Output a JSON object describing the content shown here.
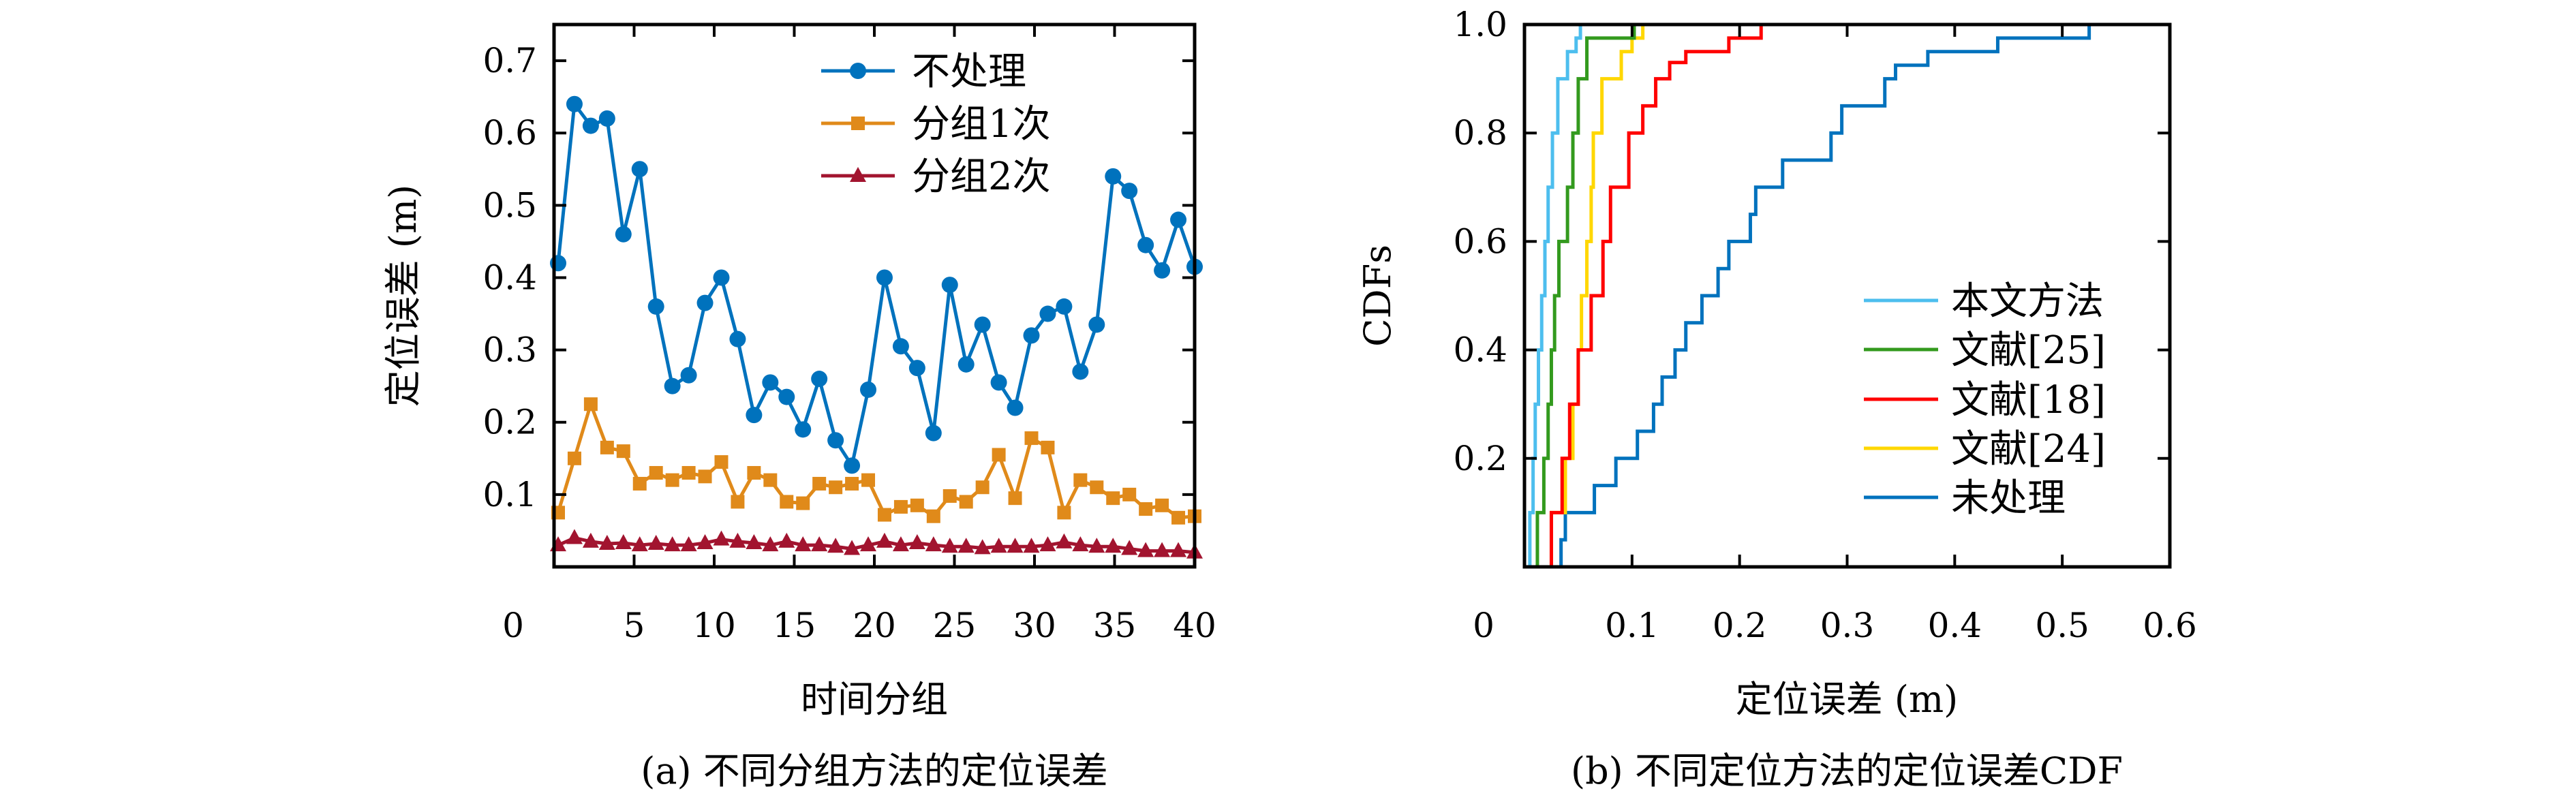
{
  "chart_data": [
    {
      "type": "line",
      "caption": "(a) 不同分组方法的定位误差",
      "xlabel": "时间分组",
      "ylabel": "定位误差 (m)",
      "xlim": [
        0,
        40
      ],
      "ylim": [
        0,
        0.75
      ],
      "xticks": [
        "0",
        "5",
        "10",
        "15",
        "20",
        "25",
        "30",
        "35",
        "40"
      ],
      "yticks": [
        "0.1",
        "0.2",
        "0.3",
        "0.4",
        "0.5",
        "0.6",
        "0.7"
      ],
      "grid": false,
      "legend_position": "top-right",
      "x": [
        1,
        2,
        3,
        4,
        5,
        6,
        7,
        8,
        9,
        10,
        11,
        12,
        13,
        14,
        15,
        16,
        17,
        18,
        19,
        20,
        21,
        22,
        23,
        24,
        25,
        26,
        27,
        28,
        29,
        30,
        31,
        32,
        33,
        34,
        35,
        36,
        37,
        38,
        39,
        40
      ],
      "series": [
        {
          "name": "不处理",
          "color": "#0072BD",
          "marker": "circle",
          "values": [
            0.42,
            0.64,
            0.61,
            0.62,
            0.46,
            0.55,
            0.36,
            0.25,
            0.265,
            0.365,
            0.4,
            0.315,
            0.21,
            0.255,
            0.235,
            0.19,
            0.26,
            0.175,
            0.14,
            0.245,
            0.4,
            0.305,
            0.275,
            0.185,
            0.39,
            0.28,
            0.335,
            0.255,
            0.22,
            0.32,
            0.35,
            0.36,
            0.27,
            0.335,
            0.54,
            0.52,
            0.445,
            0.41,
            0.48,
            0.415
          ]
        },
        {
          "name": "分组1次",
          "color": "#E08A1A",
          "marker": "square",
          "values": [
            0.075,
            0.15,
            0.225,
            0.165,
            0.16,
            0.115,
            0.13,
            0.12,
            0.13,
            0.125,
            0.145,
            0.09,
            0.13,
            0.12,
            0.09,
            0.088,
            0.115,
            0.11,
            0.115,
            0.12,
            0.072,
            0.083,
            0.085,
            0.07,
            0.098,
            0.09,
            0.11,
            0.155,
            0.095,
            0.178,
            0.165,
            0.075,
            0.12,
            0.11,
            0.095,
            0.1,
            0.08,
            0.085,
            0.068,
            0.07
          ]
        },
        {
          "name": "分组2次",
          "color": "#A2142F",
          "marker": "triangle",
          "values": [
            0.03,
            0.04,
            0.035,
            0.032,
            0.033,
            0.03,
            0.032,
            0.03,
            0.03,
            0.033,
            0.038,
            0.035,
            0.033,
            0.03,
            0.035,
            0.03,
            0.03,
            0.028,
            0.025,
            0.03,
            0.035,
            0.03,
            0.033,
            0.03,
            0.028,
            0.028,
            0.026,
            0.028,
            0.028,
            0.028,
            0.03,
            0.034,
            0.03,
            0.028,
            0.028,
            0.025,
            0.022,
            0.022,
            0.022,
            0.02
          ]
        }
      ]
    },
    {
      "type": "line",
      "caption": "(b) 不同定位方法的定位误差CDF",
      "xlabel": "定位误差 (m)",
      "ylabel": "CDFs",
      "xlim": [
        0,
        0.6
      ],
      "ylim": [
        0,
        1.0
      ],
      "xticks": [
        "0",
        "0.1",
        "0.2",
        "0.3",
        "0.4",
        "0.5",
        "0.6"
      ],
      "yticks": [
        "0.2",
        "0.4",
        "0.6",
        "0.8",
        "1.0"
      ],
      "grid": false,
      "legend_position": "bottom-right",
      "series": [
        {
          "name": "本文方法",
          "color": "#4DBEEE",
          "points": [
            [
              0.003,
              0.0
            ],
            [
              0.005,
              0.1
            ],
            [
              0.008,
              0.2
            ],
            [
              0.01,
              0.3
            ],
            [
              0.013,
              0.4
            ],
            [
              0.016,
              0.5
            ],
            [
              0.019,
              0.6
            ],
            [
              0.022,
              0.7
            ],
            [
              0.026,
              0.8
            ],
            [
              0.031,
              0.9
            ],
            [
              0.04,
              0.95
            ],
            [
              0.048,
              0.975
            ],
            [
              0.052,
              1.0
            ]
          ]
        },
        {
          "name": "文献[25]",
          "color": "#339A1E",
          "points": [
            [
              0.008,
              0.0
            ],
            [
              0.012,
              0.1
            ],
            [
              0.018,
              0.2
            ],
            [
              0.022,
              0.3
            ],
            [
              0.025,
              0.4
            ],
            [
              0.028,
              0.5
            ],
            [
              0.032,
              0.6
            ],
            [
              0.04,
              0.7
            ],
            [
              0.045,
              0.8
            ],
            [
              0.05,
              0.9
            ],
            [
              0.058,
              0.975
            ],
            [
              0.102,
              1.0
            ]
          ]
        },
        {
          "name": "文献[18]",
          "color": "#FF0000",
          "points": [
            [
              0.017,
              0.0
            ],
            [
              0.025,
              0.1
            ],
            [
              0.035,
              0.2
            ],
            [
              0.042,
              0.3
            ],
            [
              0.05,
              0.4
            ],
            [
              0.062,
              0.5
            ],
            [
              0.073,
              0.6
            ],
            [
              0.08,
              0.7
            ],
            [
              0.097,
              0.8
            ],
            [
              0.11,
              0.85
            ],
            [
              0.122,
              0.9
            ],
            [
              0.135,
              0.93
            ],
            [
              0.15,
              0.95
            ],
            [
              0.19,
              0.975
            ],
            [
              0.22,
              1.0
            ]
          ]
        },
        {
          "name": "文献[24]",
          "color": "#FFD700",
          "points": [
            [
              0.016,
              0.0
            ],
            [
              0.025,
              0.1
            ],
            [
              0.038,
              0.2
            ],
            [
              0.045,
              0.3
            ],
            [
              0.05,
              0.4
            ],
            [
              0.053,
              0.5
            ],
            [
              0.058,
              0.6
            ],
            [
              0.062,
              0.7
            ],
            [
              0.064,
              0.8
            ],
            [
              0.072,
              0.9
            ],
            [
              0.09,
              0.95
            ],
            [
              0.1,
              0.975
            ],
            [
              0.11,
              1.0
            ]
          ]
        },
        {
          "name": "未处理",
          "color": "#0072BD",
          "points": [
            [
              0.027,
              0.0
            ],
            [
              0.034,
              0.05
            ],
            [
              0.038,
              0.1
            ],
            [
              0.065,
              0.15
            ],
            [
              0.085,
              0.2
            ],
            [
              0.105,
              0.25
            ],
            [
              0.12,
              0.3
            ],
            [
              0.128,
              0.35
            ],
            [
              0.14,
              0.4
            ],
            [
              0.15,
              0.45
            ],
            [
              0.165,
              0.5
            ],
            [
              0.18,
              0.55
            ],
            [
              0.19,
              0.6
            ],
            [
              0.21,
              0.65
            ],
            [
              0.215,
              0.7
            ],
            [
              0.24,
              0.75
            ],
            [
              0.285,
              0.8
            ],
            [
              0.295,
              0.85
            ],
            [
              0.335,
              0.9
            ],
            [
              0.345,
              0.925
            ],
            [
              0.375,
              0.95
            ],
            [
              0.44,
              0.975
            ],
            [
              0.525,
              1.0
            ]
          ]
        }
      ]
    }
  ]
}
